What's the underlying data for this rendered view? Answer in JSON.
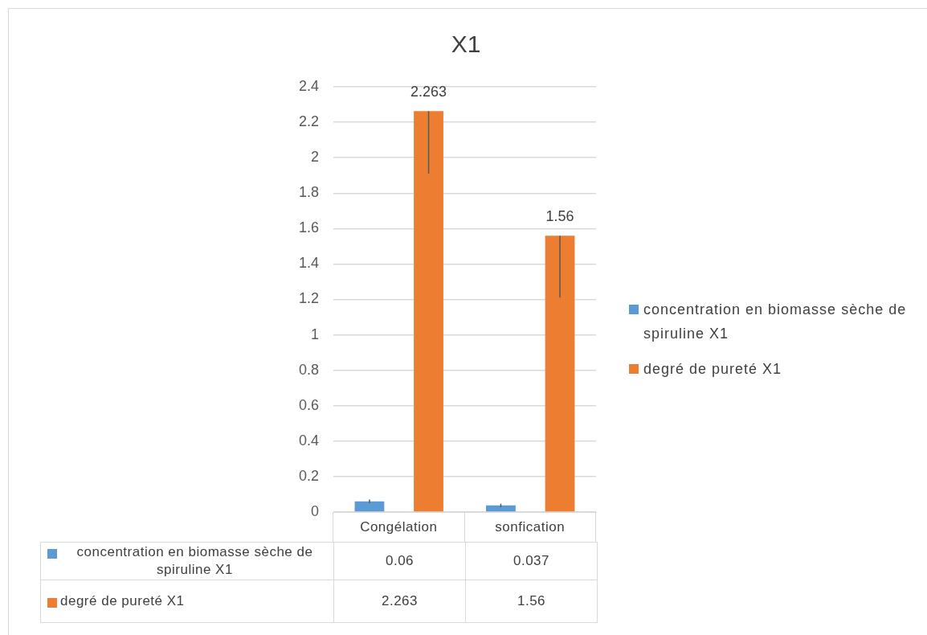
{
  "chart_data": [
    {
      "type": "bar",
      "title": "X1",
      "categories": [
        "Congélation",
        "sonfication"
      ],
      "series": [
        {
          "name": "concentration en biomasse sèche de spiruline X1",
          "color": "#5b9bd5",
          "values": [
            0.06,
            0.037
          ],
          "errors": [
            [
              0.05,
              0.07
            ],
            [
              0.027,
              0.047
            ]
          ]
        },
        {
          "name": "degré de pureté X1",
          "color": "#ed7d31",
          "values": [
            2.263,
            1.56
          ],
          "errors": [
            [
              1.91,
              2.263
            ],
            [
              1.21,
              1.56
            ]
          ],
          "value_labels": [
            "2.263",
            "1.56"
          ]
        }
      ],
      "ylim": [
        0,
        2.4
      ],
      "yticks": [
        0,
        0.2,
        0.4,
        0.6,
        0.8,
        1,
        1.2,
        1.4,
        1.6,
        1.8,
        2,
        2.2,
        2.4
      ],
      "grid": "y",
      "legend": "right"
    },
    {
      "type": "other",
      "annotations": [
        "concentration en biomasse sèche de spiruline X1",
        "0.06",
        "0.037",
        "degré de pureté X1",
        "2.263",
        "1.56"
      ]
    }
  ]
}
